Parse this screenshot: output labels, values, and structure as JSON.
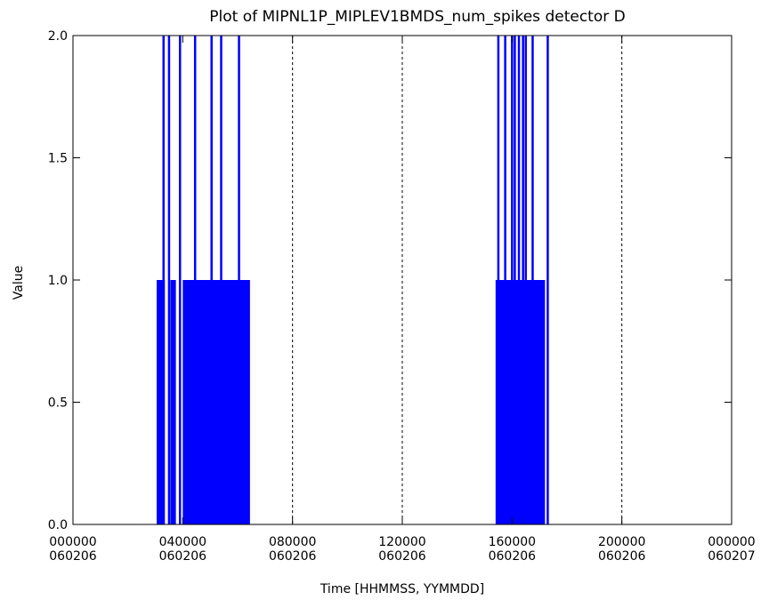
{
  "chart_data": {
    "type": "bar",
    "title": "Plot of MIPNL1P_MIPLEV1BMDS_num_spikes detector D",
    "xlabel": "Time [HHMMSS, YYMMDD]",
    "ylabel": "Value",
    "xlim": [
      0,
      24
    ],
    "ylim": [
      0,
      2
    ],
    "x_unit": "hours since 000000 060206",
    "y_ticks": [
      "0.0",
      "0.5",
      "1.0",
      "1.5",
      "2.0"
    ],
    "x_ticks": [
      {
        "x": 0,
        "time": "000000",
        "date": "060206"
      },
      {
        "x": 4,
        "time": "040000",
        "date": "060206"
      },
      {
        "x": 8,
        "time": "080000",
        "date": "060206"
      },
      {
        "x": 12,
        "time": "120000",
        "date": "060206"
      },
      {
        "x": 16,
        "time": "160000",
        "date": "060206"
      },
      {
        "x": 20,
        "time": "200000",
        "date": "060206"
      },
      {
        "x": 24,
        "time": "000000",
        "date": "060207"
      }
    ],
    "gridlines_x": [
      8,
      12,
      16,
      20
    ],
    "grid": "vertical dashed",
    "series_color": "#0000ff",
    "blocks": [
      {
        "start": 3.05,
        "end": 3.35,
        "value": 1
      },
      {
        "start": 3.55,
        "end": 3.75,
        "value": 1
      },
      {
        "start": 4.0,
        "end": 6.45,
        "value": 1
      },
      {
        "start": 15.4,
        "end": 17.2,
        "value": 1
      }
    ],
    "spikes": [
      {
        "x": 3.3,
        "value": 2
      },
      {
        "x": 3.5,
        "value": 2
      },
      {
        "x": 3.9,
        "value": 2
      },
      {
        "x": 4.45,
        "value": 2
      },
      {
        "x": 5.05,
        "value": 2
      },
      {
        "x": 5.4,
        "value": 2
      },
      {
        "x": 6.05,
        "value": 2
      },
      {
        "x": 15.5,
        "value": 2
      },
      {
        "x": 15.75,
        "value": 2
      },
      {
        "x": 16.0,
        "value": 2
      },
      {
        "x": 16.1,
        "value": 2
      },
      {
        "x": 16.25,
        "value": 2
      },
      {
        "x": 16.4,
        "value": 2
      },
      {
        "x": 16.5,
        "value": 2
      },
      {
        "x": 16.75,
        "value": 2
      },
      {
        "x": 17.3,
        "value": 2
      }
    ]
  }
}
